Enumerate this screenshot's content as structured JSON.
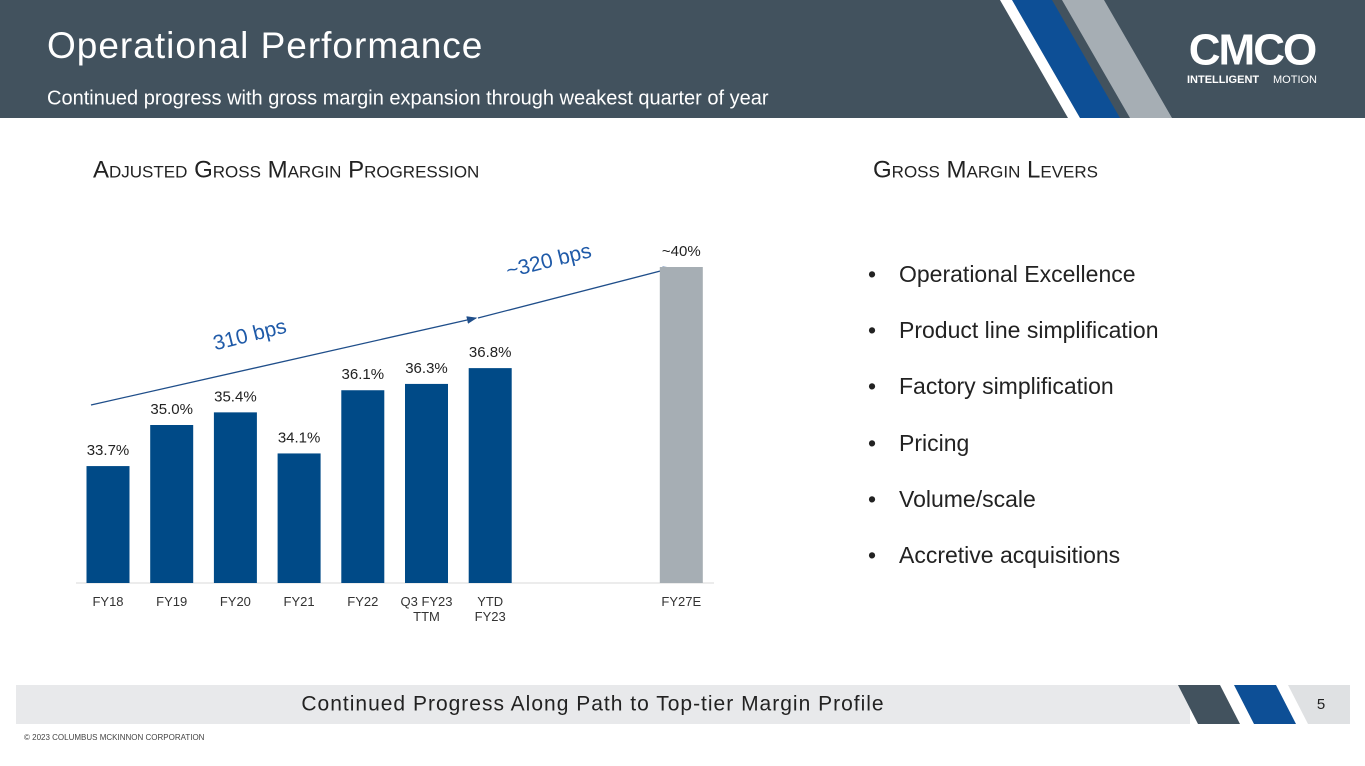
{
  "header": {
    "title": "Operational Performance",
    "subtitle": "Continued progress with gross margin expansion through weakest quarter of year"
  },
  "logo": {
    "name": "CMCO",
    "tagline_bold": "INTELLIGENT",
    "tagline_light": "MOTION"
  },
  "chart_data": {
    "type": "bar",
    "title": "Adjusted Gross Margin Progression",
    "categories": [
      "FY18",
      "FY19",
      "FY20",
      "FY21",
      "FY22",
      "Q3 FY23 TTM",
      "YTD FY23",
      null,
      null,
      "FY27E"
    ],
    "values": [
      33.7,
      35.0,
      35.4,
      34.1,
      36.1,
      36.3,
      36.8,
      null,
      null,
      40
    ],
    "value_labels": [
      "33.7%",
      "35.0%",
      "35.4%",
      "34.1%",
      "36.1%",
      "36.3%",
      "36.8%",
      null,
      null,
      "~40%"
    ],
    "colors": [
      "#004a87",
      "#004a87",
      "#004a87",
      "#004a87",
      "#004a87",
      "#004a87",
      "#004a87",
      null,
      null,
      "#a6aeb4"
    ],
    "ylim": [
      30,
      40
    ],
    "annotations": [
      "310 bps",
      "~320 bps"
    ],
    "annotation_color": "#1f5aa8"
  },
  "levers": {
    "title": "Gross Margin Levers",
    "items": [
      "Operational Excellence",
      "Product line simplification",
      "Factory simplification",
      "Pricing",
      "Volume/scale",
      "Accretive acquisitions"
    ]
  },
  "footer": {
    "text": "Continued Progress Along Path to Top-tier Margin Profile",
    "page": "5",
    "copyright": "© 2023 COLUMBUS MCKINNON CORPORATION"
  }
}
